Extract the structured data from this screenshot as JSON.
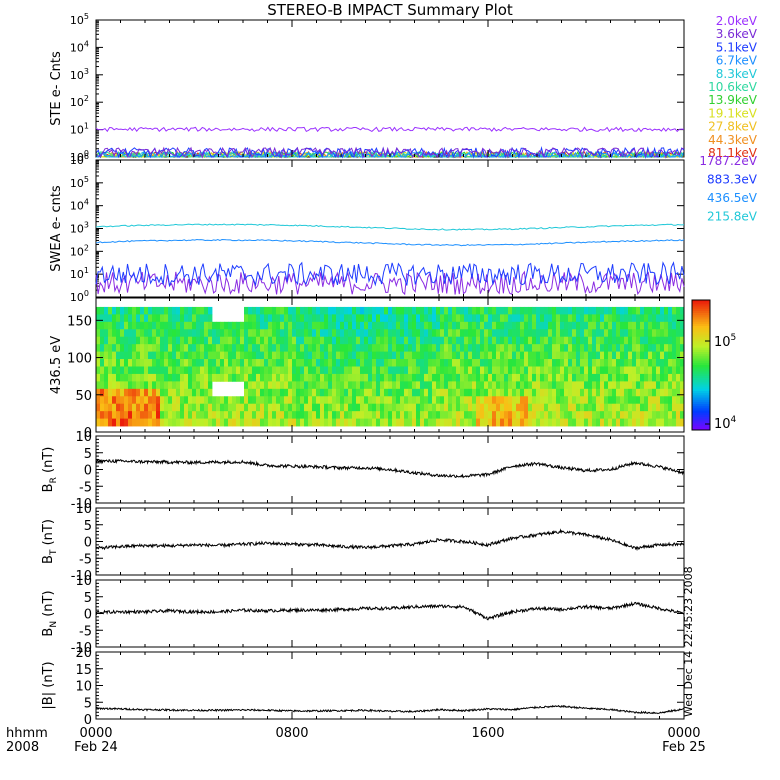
{
  "chart_data": [
    {
      "type": "line",
      "title": "STEREO-B IMPACT Summary Plot",
      "ylabel": "STE e- Cnts",
      "yscale": "log",
      "ylim": [
        1,
        100000
      ],
      "yticks": [
        "10^0",
        "10^1",
        "10^2",
        "10^3",
        "10^4",
        "10^5"
      ],
      "series": [
        {
          "name": "2.0keV",
          "color": "#9b30ff",
          "level": 10
        },
        {
          "name": "3.6keV",
          "color": "#7a2bd6",
          "level": 1.4
        },
        {
          "name": "5.1keV",
          "color": "#1e3cff",
          "level": 1.4
        },
        {
          "name": "6.7keV",
          "color": "#1e90ff",
          "level": 1.0
        },
        {
          "name": "8.3keV",
          "color": "#20c8d8",
          "level": 1.0
        },
        {
          "name": "10.6keV",
          "color": "#2ed8a0",
          "level": 1.0
        },
        {
          "name": "13.9keV",
          "color": "#30d030",
          "level": 1.0
        },
        {
          "name": "19.1keV",
          "color": "#d8e020",
          "level": 1.0
        },
        {
          "name": "27.8keV",
          "color": "#f0c020",
          "level": 1.0
        },
        {
          "name": "44.3keV",
          "color": "#f09020",
          "level": 1.0
        },
        {
          "name": "81.1keV",
          "color": "#e03010",
          "level": 1.0
        }
      ]
    },
    {
      "type": "line",
      "ylabel": "SWEA e- cnts",
      "yscale": "log",
      "ylim": [
        1,
        1000000
      ],
      "yticks": [
        "10^0",
        "10^1",
        "10^2",
        "10^3",
        "10^4",
        "10^5",
        "10^6"
      ],
      "series": [
        {
          "name": "1787.2eV",
          "color": "#8a2be2",
          "level": 4
        },
        {
          "name": "883.3eV",
          "color": "#1e3cff",
          "level": 10
        },
        {
          "name": "436.5eV",
          "color": "#1e90ff",
          "level": 250
        },
        {
          "name": "215.8eV",
          "color": "#20c8d8",
          "level": 1200
        }
      ]
    },
    {
      "type": "heatmap",
      "ylabel": "436.5 eV",
      "ylim": [
        0,
        180
      ],
      "yticks": [
        0,
        50,
        100,
        150
      ],
      "colorbar": {
        "scale": "log",
        "min_label": "10^4",
        "max_label": "10^5"
      }
    },
    {
      "type": "line",
      "ylabel": "B_R (nT)",
      "ylim": [
        -10,
        10
      ],
      "yticks": [
        10,
        5,
        0,
        -5,
        -10
      ],
      "x": [
        0,
        1,
        2,
        3,
        4,
        5,
        6,
        7,
        8,
        9,
        10,
        11,
        12,
        13,
        14,
        15,
        16,
        17,
        18,
        19,
        20,
        21,
        22,
        23,
        24
      ],
      "values": [
        2.5,
        2.5,
        2.3,
        2.2,
        2.1,
        2.2,
        2.3,
        1.2,
        1.0,
        0.8,
        0.5,
        0.5,
        0.0,
        -1.0,
        -1.8,
        -2.0,
        -1.5,
        1.0,
        1.8,
        0.5,
        -0.3,
        0.0,
        2.0,
        0.8,
        -1.0
      ]
    },
    {
      "type": "line",
      "ylabel": "B_T (nT)",
      "ylim": [
        -10,
        10
      ],
      "yticks": [
        10,
        5,
        0,
        -5,
        -10
      ],
      "x": [
        0,
        1,
        2,
        3,
        4,
        5,
        6,
        7,
        8,
        9,
        10,
        11,
        12,
        13,
        14,
        15,
        16,
        17,
        18,
        19,
        20,
        21,
        22,
        23,
        24
      ],
      "values": [
        -2.0,
        -1.5,
        -1.2,
        -1.3,
        -1.0,
        -1.2,
        -0.8,
        -0.5,
        -0.8,
        -1.0,
        -1.5,
        -1.8,
        -1.3,
        -0.8,
        0.5,
        0.0,
        -1.0,
        1.0,
        2.0,
        3.0,
        2.0,
        0.5,
        -2.0,
        -1.0,
        -0.8
      ]
    },
    {
      "type": "line",
      "ylabel": "B_N (nT)",
      "ylim": [
        -10,
        10
      ],
      "yticks": [
        10,
        5,
        0,
        -5,
        -10
      ],
      "x": [
        0,
        1,
        2,
        3,
        4,
        5,
        6,
        7,
        8,
        9,
        10,
        11,
        12,
        13,
        14,
        15,
        16,
        17,
        18,
        19,
        20,
        21,
        22,
        23,
        24
      ],
      "values": [
        0.3,
        0.5,
        0.5,
        0.8,
        0.5,
        0.5,
        1.0,
        0.8,
        1.0,
        1.0,
        1.2,
        1.5,
        1.5,
        2.0,
        2.2,
        2.0,
        -1.5,
        0.5,
        1.5,
        1.2,
        2.0,
        1.5,
        3.0,
        1.5,
        0.0
      ]
    },
    {
      "type": "line",
      "ylabel": "|B| (nT)",
      "ylim": [
        0,
        20
      ],
      "yticks": [
        20,
        15,
        10,
        5,
        0
      ],
      "x": [
        0,
        1,
        2,
        3,
        4,
        5,
        6,
        7,
        8,
        9,
        10,
        11,
        12,
        13,
        14,
        15,
        16,
        17,
        18,
        19,
        20,
        21,
        22,
        23,
        24
      ],
      "values": [
        3.2,
        3.0,
        2.8,
        2.7,
        2.6,
        2.6,
        2.7,
        2.6,
        2.4,
        2.4,
        2.5,
        2.6,
        2.3,
        2.2,
        2.8,
        2.5,
        3.0,
        2.8,
        3.5,
        3.8,
        3.2,
        2.8,
        2.0,
        1.8,
        3.0
      ]
    }
  ],
  "xaxis": {
    "range_hours": [
      0,
      24
    ],
    "ticks": [
      {
        "hour": 0,
        "label": "0000",
        "date": "Feb 24"
      },
      {
        "hour": 8,
        "label": "0800",
        "date": ""
      },
      {
        "hour": 16,
        "label": "1600",
        "date": ""
      },
      {
        "hour": 24,
        "label": "0000",
        "date": "Feb 25"
      }
    ],
    "corner_label_top": "hhmm",
    "corner_label_bottom": "2008"
  },
  "side_note": "Wed Dec 14 22:45:23 2008",
  "labels": {
    "title": "STEREO-B IMPACT Summary Plot",
    "ste_ylabel": "STE e- Cnts",
    "swea_ylabel": "SWEA e- cnts",
    "heat_ylabel": "436.5 eV",
    "br_ylabel": "B",
    "br_sub": "R",
    "bt_ylabel": "B",
    "bt_sub": "T",
    "bn_ylabel": "B",
    "bn_sub": "N",
    "bmag_ylabel": "|B|",
    "unit": "(nT)"
  }
}
